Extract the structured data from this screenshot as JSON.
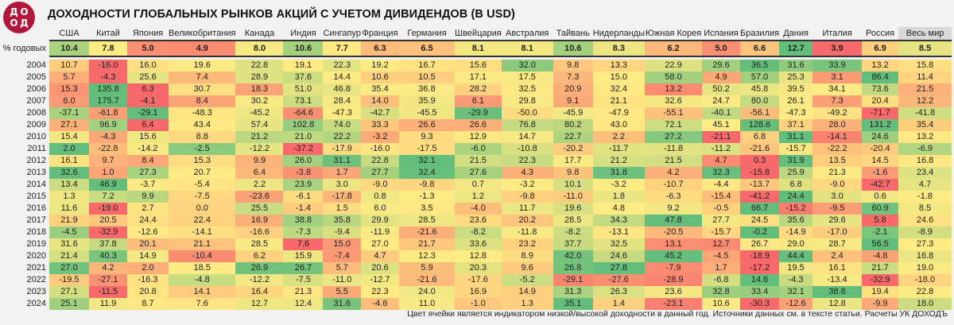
{
  "title": "ДОХОДНОСТИ ГЛОБАЛЬНЫХ РЫНКОВ АКЦИЙ С УЧЕТОМ ДИВИДЕНДОВ (В USD)",
  "logo": "ДОХОДЪ",
  "footnote": "Цвет ячейки является индикатором низкой/высокой доходности в данный год. Источники данных см. в тексте статьи. Расчеты УК ДОХОДЪ",
  "colors": {
    "low": "#f8696b",
    "mid": "#ffeb84",
    "high": "#63be7b",
    "logo": "#b0173a"
  },
  "chart_data": {
    "type": "heatmap",
    "color_scale": "per-row red-yellow-green",
    "columns": [
      "США",
      "Китай",
      "Япония",
      "Великобритания",
      "Канада",
      "Индия",
      "Сингапур",
      "Франция",
      "Германия",
      "Швейцария",
      "Австралия",
      "Тайвань",
      "Нидерланды",
      "Южная Корея",
      "Испания",
      "Бразилия",
      "Дания",
      "Италия",
      "Россия",
      "Весь мир"
    ],
    "summary": {
      "label": "% годовых",
      "values": [
        10.4,
        7.8,
        5.0,
        4.9,
        8.0,
        10.6,
        7.7,
        6.3,
        6.5,
        8.1,
        8.1,
        10.6,
        8.3,
        6.2,
        5.0,
        6.6,
        12.7,
        3.9,
        6.9,
        8.5
      ]
    },
    "rows": [
      {
        "year": "2004",
        "values": [
          10.7,
          -16.0,
          16.0,
          19.6,
          22.8,
          19.1,
          22.3,
          19.2,
          16.7,
          15.6,
          32.0,
          9.8,
          13.3,
          22.9,
          29.6,
          36.5,
          31.6,
          33.9,
          13.2,
          15.8
        ]
      },
      {
        "year": "2005",
        "values": [
          5.7,
          -4.3,
          25.6,
          7.4,
          28.9,
          37.6,
          14.4,
          10.6,
          10.5,
          17.1,
          17.5,
          7.3,
          15.0,
          58.0,
          4.9,
          57.0,
          25.3,
          3.1,
          86.4,
          11.4
        ]
      },
      {
        "year": "2006",
        "values": [
          15.3,
          135.8,
          6.3,
          30.7,
          18.3,
          51.0,
          46.8,
          35.4,
          36.8,
          28.2,
          32.5,
          20.9,
          32.4,
          13.2,
          50.2,
          45.8,
          39.5,
          34.1,
          73.6,
          21.5
        ]
      },
      {
        "year": "2007",
        "values": [
          6.0,
          175.7,
          -4.1,
          8.4,
          30.2,
          73.1,
          28.4,
          14.0,
          35.9,
          6.1,
          29.8,
          9.1,
          21.1,
          32.6,
          24.7,
          80.0,
          26.1,
          7.3,
          20.4,
          12.2
        ]
      },
      {
        "year": "2008",
        "values": [
          -37.1,
          -61.8,
          -29.1,
          -48.3,
          -45.2,
          -64.6,
          -47.3,
          -42.7,
          -45.5,
          -29.9,
          -50.0,
          -45.9,
          -47.9,
          -55.1,
          -40.1,
          -56.1,
          -47.3,
          -49.2,
          -71.7,
          -41.8
        ]
      },
      {
        "year": "2009",
        "values": [
          27.1,
          96.9,
          6.4,
          43.4,
          57.4,
          102.8,
          74.0,
          33.3,
          26.6,
          26.6,
          76.8,
          80.2,
          43.0,
          72.1,
          45.1,
          128.6,
          37.1,
          28.0,
          131.2,
          35.4
        ]
      },
      {
        "year": "2010",
        "values": [
          15.4,
          -4.3,
          15.6,
          8.8,
          21.2,
          21.0,
          22.2,
          -3.2,
          9.3,
          12.9,
          14.7,
          22.7,
          2.2,
          27.2,
          -21.1,
          6.8,
          31.1,
          -14.1,
          24.6,
          13.2
        ]
      },
      {
        "year": "2011",
        "values": [
          2.0,
          -22.8,
          -14.2,
          -2.5,
          -12.2,
          -37.2,
          -17.9,
          -16.0,
          -17.5,
          -6.0,
          -10.8,
          -20.2,
          -11.7,
          -11.8,
          -11.2,
          -21.6,
          -15.7,
          -22.2,
          -20.4,
          -6.9
        ]
      },
      {
        "year": "2012",
        "values": [
          16.1,
          9.7,
          8.4,
          15.3,
          9.9,
          26.0,
          31.1,
          22.8,
          32.1,
          21.5,
          22.3,
          17.7,
          21.2,
          21.5,
          4.7,
          0.3,
          31.9,
          13.5,
          14.5,
          16.8
        ]
      },
      {
        "year": "2013",
        "values": [
          32.6,
          1.0,
          27.3,
          20.7,
          6.4,
          -3.8,
          1.7,
          27.7,
          32.4,
          27.6,
          4.3,
          9.8,
          31.8,
          4.2,
          32.3,
          -15.8,
          25.9,
          21.3,
          -1.6,
          23.4
        ]
      },
      {
        "year": "2014",
        "values": [
          13.4,
          46.9,
          -3.7,
          -5.4,
          2.2,
          23.9,
          3.0,
          -9.0,
          -9.8,
          0.7,
          -3.2,
          10.1,
          -3.2,
          -10.7,
          -4.4,
          -13.7,
          6.8,
          -9.0,
          -42.7,
          4.7
        ]
      },
      {
        "year": "2015",
        "values": [
          1.3,
          7.2,
          9.9,
          -7.5,
          -23.6,
          -6.1,
          -17.8,
          0.8,
          -1.3,
          1.2,
          -9.8,
          -11.0,
          1.8,
          -6.3,
          -15.4,
          -41.2,
          24.4,
          3.0,
          0.6,
          -1.8
        ]
      },
      {
        "year": "2016",
        "values": [
          11.6,
          -19.0,
          2.7,
          0.0,
          25.5,
          -1.4,
          1.5,
          6.0,
          3.5,
          -4.0,
          11.7,
          19.6,
          4.8,
          9.2,
          -0.5,
          66.7,
          -15.2,
          -9.5,
          60.9,
          8.5
        ]
      },
      {
        "year": "2017",
        "values": [
          21.9,
          20.5,
          24.4,
          22.4,
          16.9,
          38.8,
          35.8,
          29.9,
          28.5,
          23.6,
          20.2,
          28.5,
          34.3,
          47.8,
          27.7,
          24.5,
          35.6,
          29.6,
          5.8,
          24.6
        ]
      },
      {
        "year": "2018",
        "values": [
          -4.5,
          -32.9,
          -12.6,
          -14.1,
          -16.6,
          -7.3,
          -9.4,
          -11.9,
          -21.6,
          -8.2,
          -11.8,
          -8.2,
          -13.1,
          -20.5,
          -15.7,
          -0.2,
          -14.9,
          -17.0,
          -2.1,
          -8.9
        ]
      },
      {
        "year": "2019",
        "values": [
          31.6,
          37.8,
          20.1,
          21.1,
          28.5,
          7.6,
          15.0,
          27.0,
          21.7,
          33.6,
          23.2,
          37.7,
          32.5,
          13.1,
          12.7,
          26.7,
          29.0,
          28.7,
          56.5,
          27.3
        ]
      },
      {
        "year": "2020",
        "values": [
          21.4,
          40.3,
          14.9,
          -10.4,
          6.2,
          15.9,
          -7.4,
          4.7,
          12.3,
          12.8,
          8.9,
          42.0,
          24.6,
          45.2,
          -4.5,
          -18.9,
          44.4,
          2.4,
          -4.8,
          16.8
        ]
      },
      {
        "year": "2021",
        "values": [
          27.0,
          4.2,
          2.0,
          18.5,
          26.9,
          26.7,
          5.7,
          20.6,
          5.9,
          20.3,
          9.6,
          26.8,
          27.8,
          -7.9,
          1.7,
          -17.2,
          19.5,
          16.1,
          21.7,
          19.0
        ]
      },
      {
        "year": "2022",
        "values": [
          -19.5,
          -27.1,
          -16.3,
          -4.8,
          -12.2,
          -7.5,
          -11.0,
          -12.7,
          -21.6,
          -17.6,
          -5.2,
          -29.1,
          -27.6,
          -28.9,
          -6.8,
          14.6,
          -4.3,
          -13.4,
          -32.9,
          -18.0
        ]
      },
      {
        "year": "2023",
        "values": [
          27.1,
          -11.5,
          20.8,
          14.1,
          16.4,
          21.3,
          5.5,
          22.3,
          24.0,
          16.9,
          14.9,
          31.3,
          26.3,
          23.6,
          32.8,
          33.4,
          32.1,
          38.8,
          19.4,
          22.8
        ]
      },
      {
        "year": "2024",
        "values": [
          25.1,
          11.9,
          8.7,
          7.6,
          12.7,
          12.4,
          31.6,
          -4.6,
          11.0,
          -1.0,
          1.3,
          35.1,
          1.4,
          -23.1,
          10.6,
          -30.3,
          -12.6,
          12.8,
          -9.9,
          18.0
        ]
      }
    ]
  }
}
